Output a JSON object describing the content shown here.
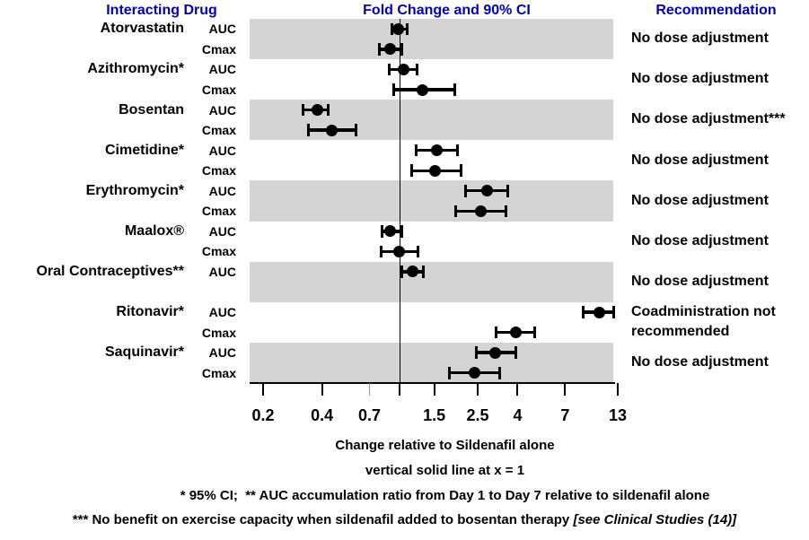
{
  "footnotes": {
    "line1": "* 95% CI;  ** AUC accumulation ratio from Day 1 to Day 7 relative to sildenafil alone",
    "line2_text": "*** No benefit on exercise capacity when sildenafil added to bosentan therapy ",
    "line2_italic": "[see Clinical Studies (14)]"
  },
  "chart_data": {
    "type": "forest",
    "title": "Fold Change and 90% CI",
    "columns": {
      "left": "Interacting Drug",
      "center": "Fold Change and 90% CI",
      "right": "Recommendation"
    },
    "x_scale": "log",
    "x_range": [
      0.2,
      13
    ],
    "x_tick_values": [
      0.2,
      0.4,
      0.7,
      1,
      1.5,
      2.5,
      4,
      7,
      13
    ],
    "x_tick_labels": [
      "0.2",
      "0.4",
      "0.7",
      "",
      "1.5",
      "2.5",
      "4",
      "7",
      "13"
    ],
    "reference_line_x": 1,
    "xlabel": "Change relative to Sildenafil alone",
    "xlabel2": "vertical solid line at x = 1",
    "ci_level_note": "90% CI shown; * indicates 95% CI",
    "groups": [
      {
        "drug": "Atorvastatin",
        "shaded": true,
        "recommendation": "No dose adjustment",
        "rows": [
          {
            "param": "AUC",
            "value": 0.98,
            "ci": [
              0.91,
              1.09
            ]
          },
          {
            "param": "Cmax",
            "value": 0.89,
            "ci": [
              0.79,
              1.02
            ]
          }
        ]
      },
      {
        "drug": "Azithromycin*",
        "shaded": false,
        "recommendation": "No dose adjustment",
        "rows": [
          {
            "param": "AUC",
            "value": 1.04,
            "ci": [
              0.88,
              1.22
            ]
          },
          {
            "param": "Cmax",
            "value": 1.31,
            "ci": [
              0.93,
              1.9
            ]
          }
        ]
      },
      {
        "drug": "Bosentan",
        "shaded": true,
        "recommendation": "No dose adjustment***",
        "rows": [
          {
            "param": "AUC",
            "value": 0.38,
            "ci": [
              0.32,
              0.43
            ]
          },
          {
            "param": "Cmax",
            "value": 0.45,
            "ci": [
              0.34,
              0.6
            ]
          }
        ]
      },
      {
        "drug": "Cimetidine*",
        "shaded": false,
        "recommendation": "No dose adjustment",
        "rows": [
          {
            "param": "AUC",
            "value": 1.54,
            "ci": [
              1.21,
              1.97
            ]
          },
          {
            "param": "Cmax",
            "value": 1.52,
            "ci": [
              1.15,
              2.05
            ]
          }
        ]
      },
      {
        "drug": "Erythromycin*",
        "shaded": true,
        "recommendation": "No dose adjustment",
        "rows": [
          {
            "param": "AUC",
            "value": 2.8,
            "ci": [
              2.17,
              3.55
            ]
          },
          {
            "param": "Cmax",
            "value": 2.59,
            "ci": [
              1.93,
              3.49
            ]
          }
        ]
      },
      {
        "drug": "Maalox®",
        "shaded": false,
        "recommendation": "No dose adjustment",
        "rows": [
          {
            "param": "AUC",
            "value": 0.89,
            "ci": [
              0.81,
              1.02
            ]
          },
          {
            "param": "Cmax",
            "value": 0.99,
            "ci": [
              0.8,
              1.24
            ]
          }
        ]
      },
      {
        "drug": "Oral Contraceptives**",
        "shaded": true,
        "recommendation": "No dose adjustment",
        "rows": [
          {
            "param": "AUC",
            "value": 1.16,
            "ci": [
              1.02,
              1.32
            ]
          }
        ]
      },
      {
        "drug": "Ritonavir*",
        "shaded": false,
        "recommendation": "Coadministration not\nrecommended",
        "rows": [
          {
            "param": "AUC",
            "value": 10.45,
            "ci": [
              8.7,
              12.4
            ]
          },
          {
            "param": "Cmax",
            "value": 3.92,
            "ci": [
              3.1,
              4.9
            ]
          }
        ]
      },
      {
        "drug": "Saquinavir*",
        "shaded": true,
        "recommendation": "No dose adjustment",
        "rows": [
          {
            "param": "AUC",
            "value": 3.08,
            "ci": [
              2.45,
              3.9
            ]
          },
          {
            "param": "Cmax",
            "value": 2.4,
            "ci": [
              1.8,
              3.25
            ]
          }
        ]
      }
    ]
  }
}
